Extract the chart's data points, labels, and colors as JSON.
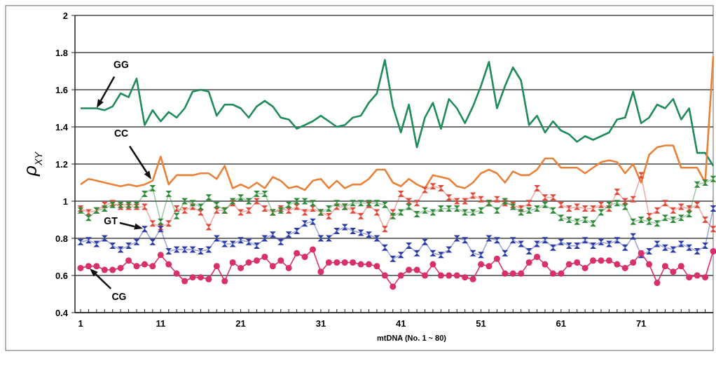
{
  "chart_data": {
    "type": "line",
    "xlabel": "mtDNA (No. 1 ~ 80)",
    "ylabel": "ρ$_{XY}$",
    "x": [
      1,
      2,
      3,
      4,
      5,
      6,
      7,
      8,
      9,
      10,
      11,
      12,
      13,
      14,
      15,
      16,
      17,
      18,
      19,
      20,
      21,
      22,
      23,
      24,
      25,
      26,
      27,
      28,
      29,
      30,
      31,
      32,
      33,
      34,
      35,
      36,
      37,
      38,
      39,
      40,
      41,
      42,
      43,
      44,
      45,
      46,
      47,
      48,
      49,
      50,
      51,
      52,
      53,
      54,
      55,
      56,
      57,
      58,
      59,
      60,
      61,
      62,
      63,
      64,
      65,
      66,
      67,
      68,
      69,
      70,
      71,
      72,
      73,
      74,
      75,
      76,
      77,
      78,
      79,
      80
    ],
    "xlim": [
      0.3,
      80
    ],
    "xticks": [
      1,
      {
        "value": 2,
        "label": null
      },
      {
        "value": 3,
        "label": null
      },
      {
        "value": 4,
        "label": null
      },
      {
        "value": 5,
        "label": null
      },
      {
        "value": 6,
        "label": null
      },
      {
        "value": 7,
        "label": null
      },
      {
        "value": 8,
        "label": null
      },
      {
        "value": 9,
        "label": null
      },
      {
        "value": 10,
        "label": null
      },
      11,
      {
        "value": 12,
        "label": null
      },
      {
        "value": 13,
        "label": null
      },
      {
        "value": 14,
        "label": null
      },
      {
        "value": 15,
        "label": null
      },
      {
        "value": 16,
        "label": null
      },
      {
        "value": 17,
        "label": null
      },
      {
        "value": 18,
        "label": null
      },
      {
        "value": 19,
        "label": null
      },
      {
        "value": 20,
        "label": null
      },
      21,
      {
        "value": 22,
        "label": null
      },
      {
        "value": 23,
        "label": null
      },
      {
        "value": 24,
        "label": null
      },
      {
        "value": 25,
        "label": null
      },
      {
        "value": 26,
        "label": null
      },
      {
        "value": 27,
        "label": null
      },
      {
        "value": 28,
        "label": null
      },
      {
        "value": 29,
        "label": null
      },
      {
        "value": 30,
        "label": null
      },
      31,
      {
        "value": 32,
        "label": null
      },
      {
        "value": 33,
        "label": null
      },
      {
        "value": 34,
        "label": null
      },
      {
        "value": 35,
        "label": null
      },
      {
        "value": 36,
        "label": null
      },
      {
        "value": 37,
        "label": null
      },
      {
        "value": 38,
        "label": null
      },
      {
        "value": 39,
        "label": null
      },
      {
        "value": 40,
        "label": null
      },
      41,
      {
        "value": 42,
        "label": null
      },
      {
        "value": 43,
        "label": null
      },
      {
        "value": 44,
        "label": null
      },
      {
        "value": 45,
        "label": null
      },
      {
        "value": 46,
        "label": null
      },
      {
        "value": 47,
        "label": null
      },
      {
        "value": 48,
        "label": null
      },
      {
        "value": 49,
        "label": null
      },
      {
        "value": 50,
        "label": null
      },
      51,
      {
        "value": 52,
        "label": null
      },
      {
        "value": 53,
        "label": null
      },
      {
        "value": 54,
        "label": null
      },
      {
        "value": 55,
        "label": null
      },
      {
        "value": 56,
        "label": null
      },
      {
        "value": 57,
        "label": null
      },
      {
        "value": 58,
        "label": null
      },
      {
        "value": 59,
        "label": null
      },
      {
        "value": 60,
        "label": null
      },
      61,
      {
        "value": 62,
        "label": null
      },
      {
        "value": 63,
        "label": null
      },
      {
        "value": 64,
        "label": null
      },
      {
        "value": 65,
        "label": null
      },
      {
        "value": 66,
        "label": null
      },
      {
        "value": 67,
        "label": null
      },
      {
        "value": 68,
        "label": null
      },
      {
        "value": 69,
        "label": null
      },
      {
        "value": 70,
        "label": null
      },
      71,
      {
        "value": 72,
        "label": null
      },
      {
        "value": 73,
        "label": null
      },
      {
        "value": 74,
        "label": null
      },
      {
        "value": 75,
        "label": null
      },
      {
        "value": 76,
        "label": null
      },
      {
        "value": 77,
        "label": null
      },
      {
        "value": 78,
        "label": null
      },
      {
        "value": 79,
        "label": null
      }
    ],
    "ylim": [
      0.4,
      2
    ],
    "yticks": [
      0.4,
      0.6,
      0.8,
      1,
      1.2,
      1.4,
      1.6,
      1.8,
      2
    ],
    "grid": "y",
    "series": [
      {
        "color": "#1f8a5a",
        "marker": "none",
        "values": [
          1.5,
          1.5,
          1.5,
          1.49,
          1.51,
          1.58,
          1.56,
          1.66,
          1.41,
          1.49,
          1.43,
          1.48,
          1.45,
          1.5,
          1.59,
          1.6,
          1.59,
          1.46,
          1.52,
          1.52,
          1.5,
          1.45,
          1.51,
          1.54,
          1.51,
          1.45,
          1.44,
          1.39,
          1.41,
          1.43,
          1.46,
          1.43,
          1.4,
          1.41,
          1.45,
          1.46,
          1.53,
          1.58,
          1.76,
          1.51,
          1.37,
          1.52,
          1.29,
          1.45,
          1.53,
          1.39,
          1.55,
          1.5,
          1.42,
          1.51,
          1.62,
          1.75,
          1.5,
          1.62,
          1.72,
          1.65,
          1.41,
          1.46,
          1.37,
          1.43,
          1.38,
          1.36,
          1.32,
          1.35,
          1.33,
          1.35,
          1.37,
          1.44,
          1.45,
          1.59,
          1.42,
          1.45,
          1.52,
          1.5,
          1.55,
          1.44,
          1.5,
          1.26,
          1.26,
          1.19
        ]
      },
      {
        "color": "#e8823a",
        "marker": "none",
        "values": [
          1.09,
          1.12,
          1.11,
          1.1,
          1.09,
          1.08,
          1.09,
          1.08,
          1.09,
          1.11,
          1.24,
          1.09,
          1.14,
          1.14,
          1.14,
          1.15,
          1.15,
          1.12,
          1.19,
          1.07,
          1.09,
          1.07,
          1.1,
          1.07,
          1.13,
          1.11,
          1.07,
          1.08,
          1.06,
          1.11,
          1.12,
          1.07,
          1.11,
          1.07,
          1.09,
          1.09,
          1.12,
          1.17,
          1.17,
          1.1,
          1.08,
          1.12,
          1.09,
          1.07,
          1.14,
          1.13,
          1.12,
          1.08,
          1.07,
          1.1,
          1.15,
          1.17,
          1.15,
          1.1,
          1.16,
          1.14,
          1.14,
          1.17,
          1.23,
          1.23,
          1.18,
          1.18,
          1.18,
          1.15,
          1.18,
          1.21,
          1.22,
          1.21,
          1.15,
          1.2,
          1.1,
          1.25,
          1.29,
          1.3,
          1.3,
          1.18,
          1.18,
          1.18,
          1.1,
          1.78
        ]
      },
      {
        "color": "#e0483a",
        "marker": "cross",
        "values": [
          0.96,
          0.94,
          0.95,
          0.98,
          0.99,
          0.97,
          0.97,
          0.97,
          0.97,
          0.88,
          0.86,
          0.88,
          0.96,
          0.95,
          0.97,
          0.94,
          0.86,
          0.95,
          0.95,
          0.99,
          0.94,
          0.95,
          1.0,
          0.96,
          0.94,
          0.96,
          0.95,
          0.97,
          0.94,
          0.96,
          0.94,
          0.92,
          0.97,
          0.97,
          0.95,
          0.92,
          0.98,
          0.94,
          0.85,
          0.94,
          1.04,
          1.0,
          0.99,
          1.06,
          1.08,
          1.07,
          1.02,
          1.0,
          1.0,
          1.03,
          1.01,
          0.99,
          1.01,
          0.99,
          0.98,
          0.96,
          0.99,
          1.07,
          1.02,
          1.02,
          0.98,
          0.96,
          0.97,
          0.96,
          0.96,
          0.98,
          0.96,
          1.05,
          1.0,
          1.01,
          1.14,
          0.92,
          0.95,
          0.99,
          0.95,
          0.97,
          0.96,
          0.98,
          0.9,
          0.85
        ]
      },
      {
        "color": "#2f8a3a",
        "marker": "cross",
        "values": [
          0.95,
          0.91,
          0.95,
          0.96,
          0.98,
          0.98,
          0.98,
          0.98,
          1.04,
          1.07,
          0.89,
          1.04,
          0.92,
          1.0,
          0.99,
          0.97,
          1.02,
          0.98,
          0.95,
          1.0,
          1.02,
          1.0,
          1.04,
          1.04,
          0.94,
          0.95,
          0.98,
          1.0,
          1.0,
          0.99,
          0.94,
          0.96,
          0.99,
          0.97,
          0.99,
          0.99,
          0.99,
          0.99,
          0.98,
          0.92,
          0.94,
          0.97,
          0.93,
          0.95,
          0.94,
          0.96,
          0.96,
          0.96,
          0.94,
          0.94,
          0.95,
          0.99,
          0.95,
          1.0,
          0.97,
          0.94,
          0.95,
          0.96,
          0.98,
          0.95,
          0.91,
          0.9,
          0.89,
          0.9,
          0.88,
          0.94,
          0.98,
          0.99,
          0.97,
          0.89,
          0.9,
          0.89,
          0.88,
          0.91,
          0.9,
          0.91,
          0.93,
          1.09,
          1.1,
          1.12
        ]
      },
      {
        "color": "#2a3aa8",
        "marker": "cross",
        "values": [
          0.78,
          0.79,
          0.77,
          0.8,
          0.76,
          0.74,
          0.76,
          0.78,
          0.85,
          0.78,
          0.85,
          0.73,
          0.74,
          0.74,
          0.74,
          0.73,
          0.74,
          0.8,
          0.77,
          0.77,
          0.79,
          0.78,
          0.76,
          0.8,
          0.82,
          0.78,
          0.82,
          0.84,
          0.88,
          0.89,
          0.8,
          0.8,
          0.84,
          0.86,
          0.84,
          0.83,
          0.82,
          0.8,
          0.75,
          0.69,
          0.71,
          0.76,
          0.72,
          0.78,
          0.72,
          0.71,
          0.74,
          0.8,
          0.79,
          0.72,
          0.71,
          0.8,
          0.79,
          0.72,
          0.79,
          0.77,
          0.73,
          0.77,
          0.79,
          0.75,
          0.78,
          0.76,
          0.76,
          0.79,
          0.76,
          0.78,
          0.77,
          0.79,
          0.75,
          0.81,
          0.71,
          0.73,
          0.77,
          0.75,
          0.74,
          0.77,
          0.75,
          0.73,
          0.76,
          0.96
        ]
      },
      {
        "color": "#d8306a",
        "marker": "circle",
        "values": [
          0.64,
          0.65,
          0.65,
          0.63,
          0.63,
          0.64,
          0.68,
          0.65,
          0.66,
          0.65,
          0.71,
          0.66,
          0.61,
          0.57,
          0.59,
          0.59,
          0.58,
          0.65,
          0.57,
          0.67,
          0.64,
          0.67,
          0.68,
          0.7,
          0.65,
          0.68,
          0.64,
          0.72,
          0.7,
          0.74,
          0.62,
          0.67,
          0.67,
          0.67,
          0.67,
          0.66,
          0.66,
          0.65,
          0.6,
          0.54,
          0.6,
          0.63,
          0.63,
          0.6,
          0.66,
          0.6,
          0.6,
          0.6,
          0.59,
          0.58,
          0.66,
          0.65,
          0.69,
          0.61,
          0.61,
          0.61,
          0.67,
          0.7,
          0.66,
          0.61,
          0.61,
          0.66,
          0.67,
          0.64,
          0.68,
          0.68,
          0.68,
          0.66,
          0.64,
          0.67,
          0.72,
          0.66,
          0.56,
          0.65,
          0.62,
          0.65,
          0.59,
          0.6,
          0.59,
          0.73
        ]
      }
    ],
    "annotations": [
      "GG",
      "CC",
      "GT",
      "CG"
    ]
  }
}
